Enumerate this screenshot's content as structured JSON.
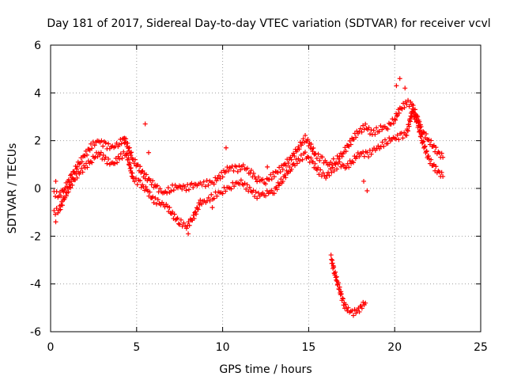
{
  "chart_data": {
    "type": "scatter",
    "title": "Day 181 of 2017, Sidereal Day-to-day VTEC variation (SDTVAR) for receiver vcvl",
    "xlabel": "GPS time / hours",
    "ylabel": "SDTVAR / TECUs",
    "xlim": [
      0,
      25
    ],
    "ylim": [
      -6,
      6
    ],
    "xticks": [
      0,
      5,
      10,
      15,
      20,
      25
    ],
    "yticks": [
      -6,
      -4,
      -2,
      0,
      2,
      4,
      6
    ],
    "grid": true,
    "marker": "+",
    "color": "#ff0000",
    "series": [
      {
        "name": "upper band",
        "points": [
          [
            0.2,
            -0.2
          ],
          [
            0.5,
            -0.3
          ],
          [
            0.8,
            0.0
          ],
          [
            1.2,
            0.5
          ],
          [
            1.6,
            1.0
          ],
          [
            2.0,
            1.4
          ],
          [
            2.4,
            1.8
          ],
          [
            2.8,
            2.0
          ],
          [
            3.2,
            1.8
          ],
          [
            3.6,
            1.7
          ],
          [
            4.0,
            1.9
          ],
          [
            4.3,
            2.1
          ],
          [
            4.8,
            1.2
          ],
          [
            5.2,
            0.8
          ],
          [
            5.5,
            0.5
          ],
          [
            5.8,
            0.3
          ],
          [
            6.2,
            0.0
          ],
          [
            6.6,
            -0.2
          ],
          [
            7.0,
            0.0
          ],
          [
            7.4,
            0.1
          ],
          [
            7.8,
            0.0
          ],
          [
            8.2,
            0.1
          ],
          [
            8.6,
            0.2
          ],
          [
            9.0,
            0.2
          ],
          [
            9.5,
            0.3
          ],
          [
            10.0,
            0.6
          ],
          [
            10.4,
            0.9
          ],
          [
            10.8,
            0.8
          ],
          [
            11.2,
            0.9
          ],
          [
            11.6,
            0.7
          ],
          [
            12.0,
            0.4
          ],
          [
            12.5,
            0.3
          ],
          [
            13.0,
            0.6
          ],
          [
            13.5,
            0.9
          ],
          [
            14.0,
            1.3
          ],
          [
            14.4,
            1.7
          ],
          [
            14.8,
            2.1
          ],
          [
            15.1,
            1.8
          ],
          [
            15.4,
            1.4
          ],
          [
            15.8,
            1.2
          ],
          [
            16.2,
            1.0
          ],
          [
            16.6,
            1.2
          ],
          [
            17.0,
            1.5
          ],
          [
            17.4,
            1.9
          ],
          [
            17.8,
            2.3
          ],
          [
            18.3,
            2.6
          ],
          [
            18.7,
            2.3
          ],
          [
            19.1,
            2.5
          ],
          [
            19.6,
            2.6
          ],
          [
            20.0,
            2.9
          ],
          [
            20.3,
            3.3
          ],
          [
            20.7,
            3.6
          ],
          [
            21.0,
            3.5
          ],
          [
            21.3,
            3.0
          ],
          [
            21.6,
            2.4
          ],
          [
            22.0,
            2.0
          ],
          [
            22.4,
            1.6
          ],
          [
            22.8,
            1.3
          ]
        ]
      },
      {
        "name": "lower band",
        "points": [
          [
            0.2,
            -1.0
          ],
          [
            0.5,
            -0.9
          ],
          [
            0.8,
            -0.4
          ],
          [
            1.2,
            0.2
          ],
          [
            1.6,
            0.6
          ],
          [
            2.0,
            0.9
          ],
          [
            2.4,
            1.2
          ],
          [
            2.8,
            1.5
          ],
          [
            3.2,
            1.2
          ],
          [
            3.6,
            1.0
          ],
          [
            4.0,
            1.3
          ],
          [
            4.4,
            1.5
          ],
          [
            4.8,
            0.4
          ],
          [
            5.2,
            0.2
          ],
          [
            5.6,
            -0.1
          ],
          [
            6.0,
            -0.5
          ],
          [
            6.4,
            -0.6
          ],
          [
            6.8,
            -0.8
          ],
          [
            7.2,
            -1.2
          ],
          [
            7.5,
            -1.4
          ],
          [
            7.9,
            -1.6
          ],
          [
            8.3,
            -1.2
          ],
          [
            8.7,
            -0.6
          ],
          [
            9.1,
            -0.5
          ],
          [
            9.5,
            -0.3
          ],
          [
            10.0,
            -0.1
          ],
          [
            10.5,
            0.1
          ],
          [
            11.0,
            0.3
          ],
          [
            11.5,
            0.0
          ],
          [
            12.0,
            -0.3
          ],
          [
            12.5,
            -0.2
          ],
          [
            13.0,
            -0.1
          ],
          [
            13.5,
            0.4
          ],
          [
            14.0,
            0.9
          ],
          [
            14.4,
            1.2
          ],
          [
            14.8,
            1.4
          ],
          [
            15.2,
            1.1
          ],
          [
            15.6,
            0.7
          ],
          [
            16.0,
            0.5
          ],
          [
            16.4,
            0.8
          ],
          [
            16.8,
            1.0
          ],
          [
            17.2,
            0.9
          ],
          [
            17.6,
            1.2
          ],
          [
            18.0,
            1.5
          ],
          [
            18.4,
            1.4
          ],
          [
            18.8,
            1.6
          ],
          [
            19.2,
            1.8
          ],
          [
            19.6,
            2.0
          ],
          [
            20.0,
            2.1
          ],
          [
            20.4,
            2.2
          ],
          [
            20.7,
            2.3
          ],
          [
            21.0,
            3.2
          ],
          [
            21.3,
            2.8
          ],
          [
            21.6,
            2.0
          ],
          [
            22.0,
            1.2
          ],
          [
            22.4,
            0.8
          ],
          [
            22.8,
            0.5
          ]
        ]
      },
      {
        "name": "isolated track",
        "points": [
          [
            16.3,
            -2.9
          ],
          [
            16.5,
            -3.5
          ],
          [
            16.7,
            -4.0
          ],
          [
            16.9,
            -4.5
          ],
          [
            17.1,
            -4.9
          ],
          [
            17.3,
            -5.1
          ],
          [
            17.6,
            -5.2
          ],
          [
            17.9,
            -5.1
          ],
          [
            18.1,
            -4.9
          ],
          [
            18.3,
            -4.8
          ]
        ]
      },
      {
        "name": "scattered points",
        "points": [
          [
            0.3,
            0.3
          ],
          [
            0.3,
            -1.4
          ],
          [
            4.3,
            1.9
          ],
          [
            5.5,
            2.7
          ],
          [
            5.7,
            1.5
          ],
          [
            8.0,
            -1.9
          ],
          [
            9.4,
            -0.8
          ],
          [
            10.2,
            1.7
          ],
          [
            12.6,
            0.9
          ],
          [
            18.4,
            -0.1
          ],
          [
            18.2,
            0.3
          ],
          [
            20.3,
            4.6
          ],
          [
            20.1,
            4.3
          ],
          [
            20.6,
            4.2
          ]
        ]
      }
    ]
  }
}
